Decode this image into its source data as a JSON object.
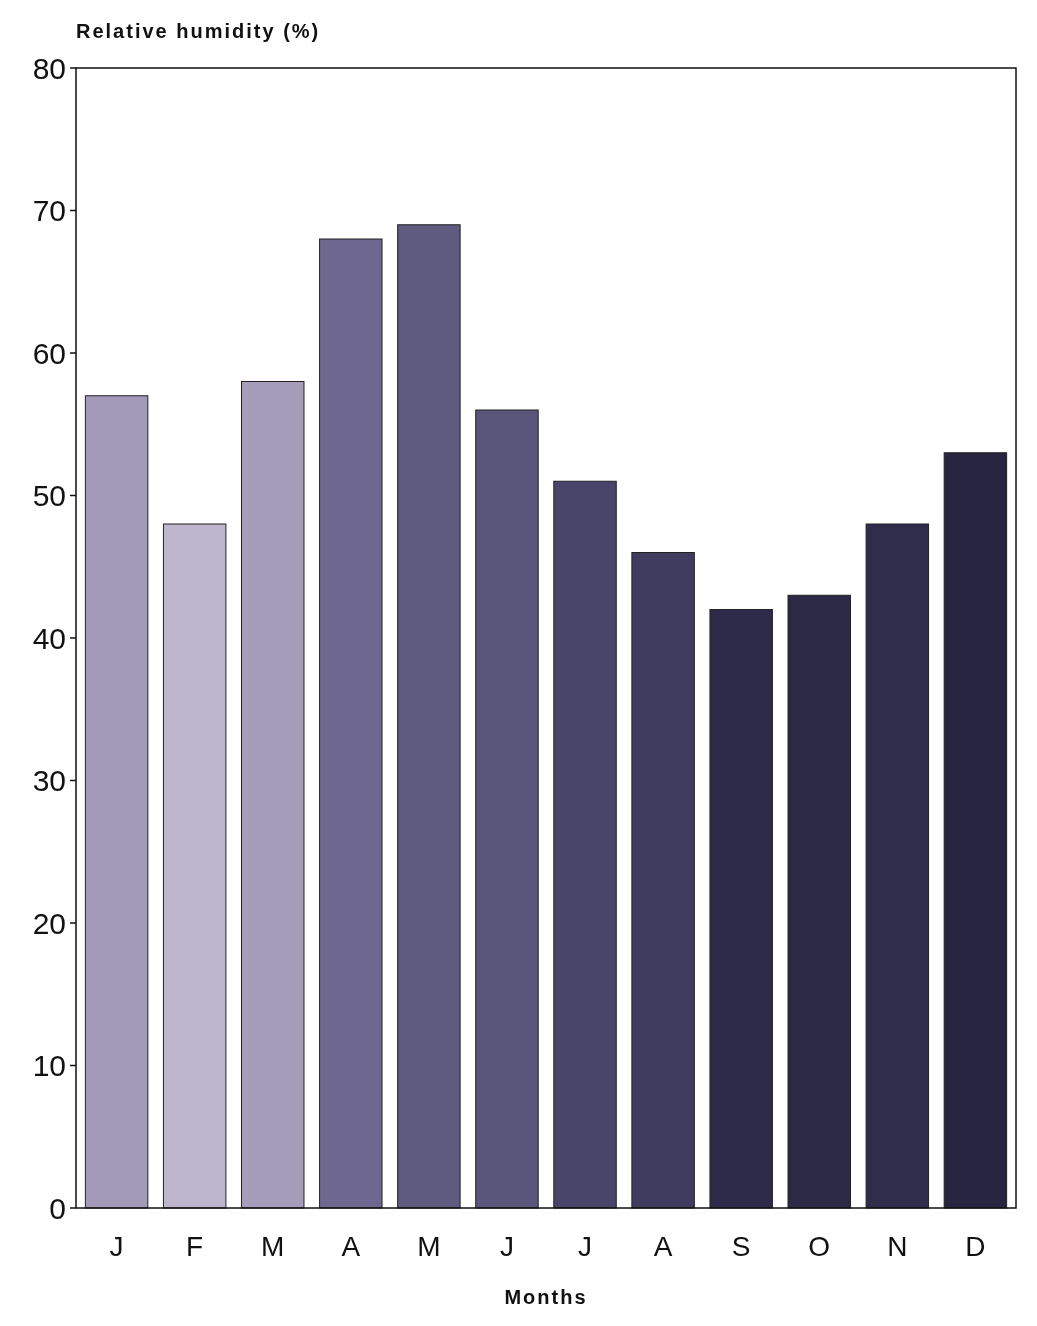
{
  "chart_data": {
    "type": "bar",
    "ylabel": "Relative humidity (%)",
    "xlabel": "Months",
    "categories": [
      "J",
      "F",
      "M",
      "A",
      "M",
      "J",
      "J",
      "A",
      "S",
      "O",
      "N",
      "D"
    ],
    "values": [
      57,
      48,
      58,
      68,
      69,
      56,
      51,
      46,
      42,
      43,
      48,
      53
    ],
    "colors": [
      "#a29ab8",
      "#bdb6cc",
      "#a59db9",
      "#6e6890",
      "#5f5a80",
      "#5a557a",
      "#48446a",
      "#403c60",
      "#2e2b4a",
      "#2b2946",
      "#2f2c4c",
      "#272540"
    ],
    "ylim": [
      0,
      80
    ],
    "yticks": [
      0,
      10,
      20,
      30,
      40,
      50,
      60,
      70,
      80
    ],
    "grid": false
  }
}
